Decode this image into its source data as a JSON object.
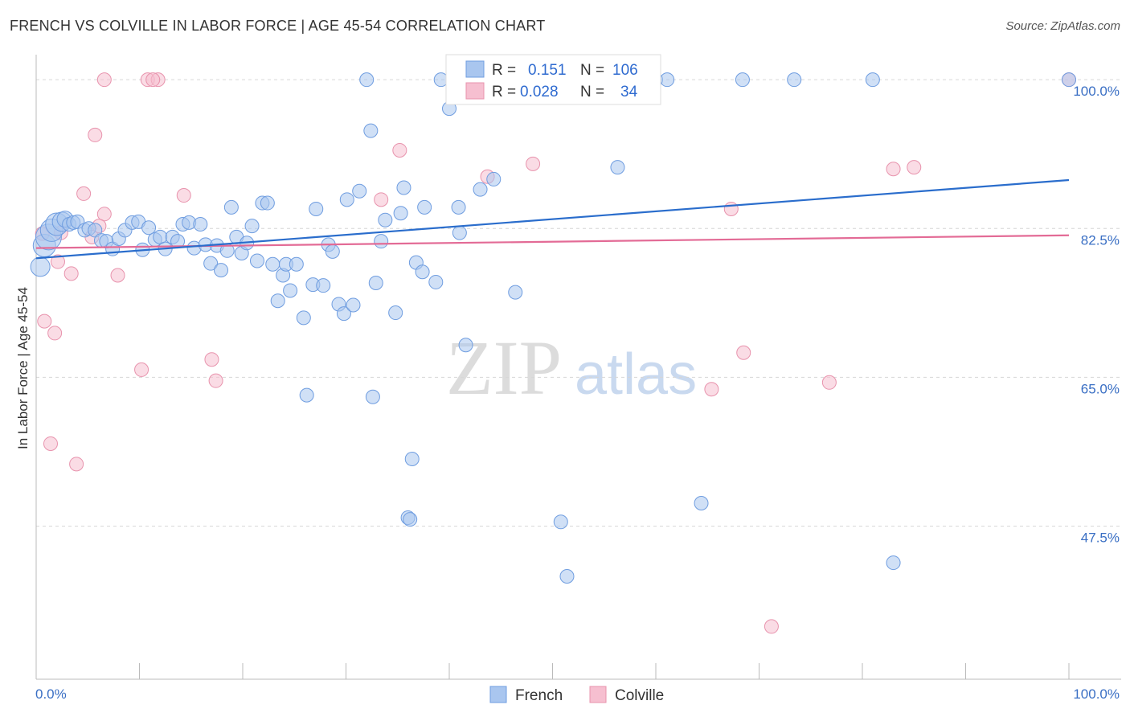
{
  "header": {
    "title": "FRENCH VS COLVILLE IN LABOR FORCE | AGE 45-54 CORRELATION CHART",
    "source": "Source: ZipAtlas.com"
  },
  "watermark": {
    "zip": "ZIP",
    "atlas": "atlas"
  },
  "colors": {
    "french_fill": "#a9c6ef",
    "french_stroke": "#6f9de0",
    "french_line": "#2a6dcc",
    "colville_fill": "#f6bfd0",
    "colville_stroke": "#e893ad",
    "colville_line": "#e36b96",
    "grid": "#d6d6d6",
    "axis_label": "#3a6fc4"
  },
  "legend": {
    "r_label": "R =",
    "n_label": "N =",
    "french": {
      "r": "0.151",
      "n": "106"
    },
    "colville": {
      "r": "0.028",
      "n": "34"
    }
  },
  "chart_data": {
    "type": "scatter",
    "title": "FRENCH VS COLVILLE IN LABOR FORCE | AGE 45-54 CORRELATION CHART",
    "ylabel": "In Labor Force | Age 45-54",
    "xlabel": "",
    "x_tick_labels": [
      "0.0%",
      "100.0%"
    ],
    "y_tick_labels": [
      "100.0%",
      "82.5%",
      "65.0%",
      "47.5%"
    ],
    "y_ticks": [
      100.0,
      82.5,
      65.0,
      47.5
    ],
    "xlim": [
      0,
      100
    ],
    "ylim": [
      29.5,
      102
    ],
    "grid": true,
    "legend_position": "bottom-center",
    "series": [
      {
        "name": "French",
        "trend": [
          [
            0,
            79.0
          ],
          [
            100,
            88.2
          ]
        ],
        "points": [
          [
            0.4,
            78.0
          ],
          [
            0.8,
            80.5
          ],
          [
            1.2,
            81.5
          ],
          [
            1.5,
            82.3
          ],
          [
            2.0,
            83.0
          ],
          [
            2.5,
            83.3
          ],
          [
            2.8,
            83.6
          ],
          [
            3.2,
            83.0
          ],
          [
            3.6,
            83.2
          ],
          [
            4.0,
            83.3
          ],
          [
            4.7,
            82.3
          ],
          [
            5.1,
            82.5
          ],
          [
            5.7,
            82.3
          ],
          [
            6.3,
            81.1
          ],
          [
            6.8,
            81.0
          ],
          [
            7.4,
            80.1
          ],
          [
            8.0,
            81.3
          ],
          [
            8.6,
            82.3
          ],
          [
            9.3,
            83.2
          ],
          [
            9.9,
            83.3
          ],
          [
            10.3,
            80.0
          ],
          [
            10.9,
            82.6
          ],
          [
            11.5,
            81.2
          ],
          [
            12.0,
            81.5
          ],
          [
            12.5,
            80.1
          ],
          [
            13.2,
            81.5
          ],
          [
            13.7,
            81.0
          ],
          [
            14.2,
            83.0
          ],
          [
            14.8,
            83.2
          ],
          [
            15.3,
            80.2
          ],
          [
            15.9,
            83.0
          ],
          [
            16.4,
            80.6
          ],
          [
            16.9,
            78.4
          ],
          [
            17.5,
            80.5
          ],
          [
            17.9,
            77.6
          ],
          [
            18.5,
            79.9
          ],
          [
            18.9,
            85.0
          ],
          [
            19.4,
            81.5
          ],
          [
            19.9,
            79.6
          ],
          [
            20.4,
            80.8
          ],
          [
            20.9,
            82.8
          ],
          [
            21.4,
            78.7
          ],
          [
            21.9,
            85.5
          ],
          [
            22.4,
            85.5
          ],
          [
            22.9,
            78.3
          ],
          [
            23.4,
            74.0
          ],
          [
            23.9,
            77.0
          ],
          [
            24.2,
            78.3
          ],
          [
            24.6,
            75.2
          ],
          [
            25.2,
            78.3
          ],
          [
            25.9,
            72.0
          ],
          [
            26.2,
            62.9
          ],
          [
            26.8,
            75.9
          ],
          [
            27.1,
            84.8
          ],
          [
            27.8,
            75.8
          ],
          [
            28.3,
            80.6
          ],
          [
            28.7,
            79.8
          ],
          [
            29.3,
            73.6
          ],
          [
            29.8,
            72.5
          ],
          [
            30.1,
            85.9
          ],
          [
            30.7,
            73.5
          ],
          [
            31.3,
            86.9
          ],
          [
            32.0,
            100.0
          ],
          [
            32.4,
            94.0
          ],
          [
            32.6,
            62.7
          ],
          [
            32.9,
            76.1
          ],
          [
            33.4,
            81.0
          ],
          [
            33.8,
            83.5
          ],
          [
            34.8,
            72.6
          ],
          [
            35.3,
            84.3
          ],
          [
            35.6,
            87.3
          ],
          [
            36.0,
            48.5
          ],
          [
            36.2,
            48.3
          ],
          [
            36.4,
            55.4
          ],
          [
            36.8,
            78.5
          ],
          [
            37.4,
            77.4
          ],
          [
            37.6,
            85.0
          ],
          [
            38.7,
            76.2
          ],
          [
            40.0,
            96.6
          ],
          [
            40.5,
            100.0
          ],
          [
            40.9,
            85.0
          ],
          [
            41.0,
            82.0
          ],
          [
            41.6,
            68.8
          ],
          [
            43.0,
            87.1
          ],
          [
            44.3,
            88.3
          ],
          [
            45.0,
            100.0
          ],
          [
            46.4,
            75.0
          ],
          [
            47.1,
            100.0
          ],
          [
            50.8,
            48.0
          ],
          [
            51.4,
            41.6
          ],
          [
            55.5,
            100.0
          ],
          [
            56.3,
            89.7
          ],
          [
            58.0,
            100.0
          ],
          [
            60.0,
            100.0
          ],
          [
            61.1,
            100.0
          ],
          [
            64.4,
            50.2
          ],
          [
            68.4,
            100.0
          ],
          [
            73.4,
            100.0
          ],
          [
            81.0,
            100.0
          ],
          [
            83.0,
            43.2
          ],
          [
            100.0,
            100.0
          ],
          [
            44.1,
            100.0
          ],
          [
            42.0,
            100.0
          ],
          [
            39.2,
            100.0
          ],
          [
            48.0,
            100.0
          ],
          [
            59.6,
            100.0
          ]
        ]
      },
      {
        "name": "Colville",
        "trend": [
          [
            0,
            80.2
          ],
          [
            100,
            81.7
          ]
        ],
        "points": [
          [
            0.6,
            81.9
          ],
          [
            0.8,
            71.6
          ],
          [
            1.4,
            57.2
          ],
          [
            1.8,
            70.2
          ],
          [
            2.1,
            78.6
          ],
          [
            3.4,
            77.2
          ],
          [
            3.9,
            54.8
          ],
          [
            4.6,
            86.6
          ],
          [
            5.4,
            81.5
          ],
          [
            5.7,
            93.5
          ],
          [
            6.6,
            100.0
          ],
          [
            6.6,
            84.2
          ],
          [
            7.9,
            77.0
          ],
          [
            10.2,
            65.9
          ],
          [
            10.8,
            100.0
          ],
          [
            11.8,
            100.0
          ],
          [
            14.3,
            86.4
          ],
          [
            17.0,
            67.1
          ],
          [
            17.4,
            64.6
          ],
          [
            33.4,
            85.9
          ],
          [
            35.2,
            91.7
          ],
          [
            43.7,
            88.6
          ],
          [
            48.1,
            90.1
          ],
          [
            65.4,
            63.6
          ],
          [
            67.3,
            84.8
          ],
          [
            68.5,
            67.9
          ],
          [
            71.2,
            35.7
          ],
          [
            76.8,
            64.4
          ],
          [
            83.0,
            89.5
          ],
          [
            85.0,
            89.7
          ],
          [
            100.0,
            100.0
          ],
          [
            11.3,
            100.0
          ],
          [
            2.4,
            82.0
          ],
          [
            6.1,
            82.8
          ]
        ]
      }
    ]
  }
}
